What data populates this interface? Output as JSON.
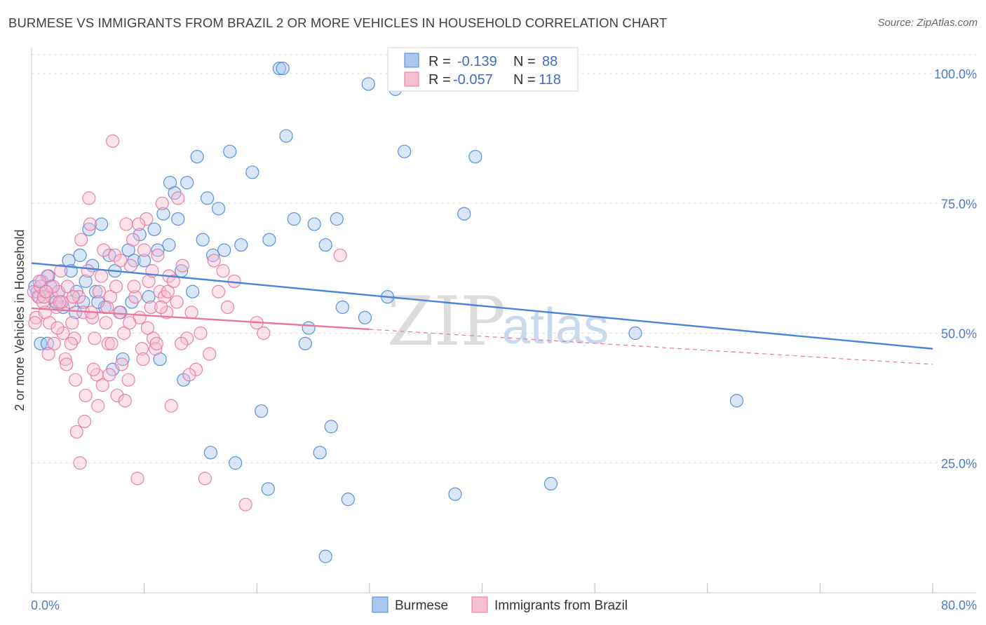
{
  "chart_data": {
    "type": "scatter",
    "title": "BURMESE VS IMMIGRANTS FROM BRAZIL 2 OR MORE VEHICLES IN HOUSEHOLD CORRELATION CHART",
    "source": "Source: ZipAtlas.com",
    "xlabel": "",
    "ylabel": "2 or more Vehicles in Household",
    "xlim": [
      0,
      80
    ],
    "ylim": [
      0,
      105
    ],
    "x_tick_labels": {
      "min": "0.0%",
      "max": "80.0%"
    },
    "y_tick_labels": [
      {
        "value": 100,
        "label": "100.0%"
      },
      {
        "value": 75,
        "label": "75.0%"
      },
      {
        "value": 50,
        "label": "50.0%"
      },
      {
        "value": 25,
        "label": "25.0%"
      }
    ],
    "watermark": {
      "part1": "ZIP",
      "part2": "atlas"
    },
    "stats": {
      "r_label": "R =",
      "n_label": "N =",
      "rows": [
        {
          "series": "Burmese",
          "r": "-0.139",
          "n": "88"
        },
        {
          "series": "Immigrants from Brazil",
          "r": "-0.057",
          "n": "118"
        }
      ]
    },
    "series": [
      {
        "name": "Burmese",
        "color": "#4a86d8",
        "fill": "#a9c7ee",
        "trend": {
          "x0": 0,
          "y0": 63.5,
          "x1": 80,
          "y1": 47.0,
          "dashed_from": null
        },
        "points": [
          [
            0.3,
            59
          ],
          [
            0.5,
            58
          ],
          [
            0.7,
            57
          ],
          [
            0.9,
            60
          ],
          [
            1.2,
            58
          ],
          [
            1.5,
            61
          ],
          [
            1.7,
            59
          ],
          [
            2.1,
            56
          ],
          [
            2.4,
            58
          ],
          [
            2.8,
            55
          ],
          [
            3.3,
            64
          ],
          [
            3.5,
            62
          ],
          [
            4.0,
            58
          ],
          [
            4.3,
            65
          ],
          [
            4.8,
            60
          ],
          [
            5.1,
            70
          ],
          [
            5.4,
            63
          ],
          [
            5.7,
            58
          ],
          [
            6.2,
            71
          ],
          [
            6.5,
            55
          ],
          [
            6.9,
            65
          ],
          [
            7.4,
            62
          ],
          [
            7.9,
            54
          ],
          [
            8.1,
            45
          ],
          [
            8.6,
            66
          ],
          [
            9.1,
            64
          ],
          [
            9.6,
            69
          ],
          [
            10.0,
            64
          ],
          [
            10.4,
            57
          ],
          [
            10.9,
            70
          ],
          [
            11.2,
            66
          ],
          [
            11.7,
            73
          ],
          [
            12.3,
            79
          ],
          [
            12.7,
            77
          ],
          [
            13.3,
            62
          ],
          [
            13.8,
            79
          ],
          [
            14.3,
            58
          ],
          [
            14.7,
            84
          ],
          [
            15.2,
            68
          ],
          [
            15.6,
            76
          ],
          [
            16.1,
            65
          ],
          [
            16.6,
            74
          ],
          [
            17.1,
            66
          ],
          [
            17.6,
            85
          ],
          [
            18.6,
            67
          ],
          [
            19.6,
            81
          ],
          [
            20.4,
            35
          ],
          [
            21.1,
            68
          ],
          [
            22.0,
            101
          ],
          [
            22.3,
            101
          ],
          [
            22.6,
            88
          ],
          [
            23.3,
            72
          ],
          [
            24.3,
            48
          ],
          [
            24.6,
            51
          ],
          [
            25.1,
            71
          ],
          [
            25.6,
            27
          ],
          [
            26.1,
            67
          ],
          [
            26.6,
            32
          ],
          [
            27.1,
            72
          ],
          [
            27.6,
            55
          ],
          [
            28.1,
            18
          ],
          [
            29.6,
            53
          ],
          [
            29.9,
            98
          ],
          [
            31.6,
            57
          ],
          [
            32.3,
            97
          ],
          [
            33.1,
            85
          ],
          [
            37.6,
            19
          ],
          [
            38.4,
            73
          ],
          [
            39.4,
            84
          ],
          [
            46.1,
            21
          ],
          [
            53.6,
            50
          ],
          [
            62.6,
            37
          ],
          [
            0.8,
            48
          ],
          [
            2.2,
            56
          ],
          [
            3.9,
            54
          ],
          [
            5.9,
            56
          ],
          [
            8.9,
            56
          ],
          [
            11.4,
            45
          ],
          [
            12.2,
            67
          ],
          [
            13.5,
            41
          ],
          [
            15.9,
            27
          ],
          [
            18.1,
            25
          ],
          [
            21.0,
            20
          ],
          [
            26.1,
            7
          ],
          [
            13.0,
            72
          ],
          [
            1.4,
            48
          ],
          [
            4.6,
            56
          ],
          [
            7.2,
            43
          ]
        ]
      },
      {
        "name": "Immigrants from Brazil",
        "color": "#e8769d",
        "fill": "#f6bfd2",
        "trend": {
          "x0": 0,
          "y0": 54.8,
          "x1": 80,
          "y1": 44.0,
          "dashed_from": 30
        },
        "points": [
          [
            0.2,
            58
          ],
          [
            0.4,
            53
          ],
          [
            0.6,
            57
          ],
          [
            0.8,
            59
          ],
          [
            1.0,
            56
          ],
          [
            1.2,
            54
          ],
          [
            1.4,
            61
          ],
          [
            1.6,
            52
          ],
          [
            1.8,
            57
          ],
          [
            2.0,
            48
          ],
          [
            2.2,
            55
          ],
          [
            2.4,
            58
          ],
          [
            2.6,
            62
          ],
          [
            2.8,
            50
          ],
          [
            3.0,
            45
          ],
          [
            3.2,
            59
          ],
          [
            3.4,
            56
          ],
          [
            3.6,
            52
          ],
          [
            3.8,
            49
          ],
          [
            4.0,
            31
          ],
          [
            4.2,
            57
          ],
          [
            4.4,
            68
          ],
          [
            4.6,
            54
          ],
          [
            4.8,
            38
          ],
          [
            5.0,
            62
          ],
          [
            5.2,
            71
          ],
          [
            5.4,
            53
          ],
          [
            5.6,
            49
          ],
          [
            5.8,
            42
          ],
          [
            6.0,
            58
          ],
          [
            6.2,
            61
          ],
          [
            6.4,
            66
          ],
          [
            6.6,
            52
          ],
          [
            6.8,
            48
          ],
          [
            7.0,
            57
          ],
          [
            7.2,
            87
          ],
          [
            7.4,
            65
          ],
          [
            7.6,
            38
          ],
          [
            7.8,
            54
          ],
          [
            8.0,
            44
          ],
          [
            8.2,
            50
          ],
          [
            8.4,
            71
          ],
          [
            8.6,
            41
          ],
          [
            8.8,
            63
          ],
          [
            9.0,
            68
          ],
          [
            9.2,
            57
          ],
          [
            9.4,
            22
          ],
          [
            9.6,
            53
          ],
          [
            9.8,
            47
          ],
          [
            10.0,
            66
          ],
          [
            10.2,
            72
          ],
          [
            10.4,
            60
          ],
          [
            10.6,
            55
          ],
          [
            10.8,
            49
          ],
          [
            11.0,
            47
          ],
          [
            11.2,
            65
          ],
          [
            11.4,
            58
          ],
          [
            11.6,
            75
          ],
          [
            11.8,
            57
          ],
          [
            12.0,
            54
          ],
          [
            12.2,
            61
          ],
          [
            12.4,
            36
          ],
          [
            12.6,
            60
          ],
          [
            13.0,
            76
          ],
          [
            13.4,
            63
          ],
          [
            13.8,
            49
          ],
          [
            14.2,
            54
          ],
          [
            14.6,
            43
          ],
          [
            15.0,
            50
          ],
          [
            15.4,
            22
          ],
          [
            15.8,
            46
          ],
          [
            16.2,
            64
          ],
          [
            16.6,
            58
          ],
          [
            17.0,
            62
          ],
          [
            17.4,
            55
          ],
          [
            18.0,
            60
          ],
          [
            19.0,
            17
          ],
          [
            20.0,
            52
          ],
          [
            20.6,
            50
          ],
          [
            27.4,
            65
          ],
          [
            0.3,
            52
          ],
          [
            0.7,
            60
          ],
          [
            1.1,
            57
          ],
          [
            1.5,
            46
          ],
          [
            1.9,
            59
          ],
          [
            2.3,
            51
          ],
          [
            2.7,
            56
          ],
          [
            3.1,
            44
          ],
          [
            3.5,
            48
          ],
          [
            3.9,
            41
          ],
          [
            4.3,
            25
          ],
          [
            4.7,
            33
          ],
          [
            5.1,
            76
          ],
          [
            5.5,
            43
          ],
          [
            5.9,
            36
          ],
          [
            6.3,
            40
          ],
          [
            6.7,
            55
          ],
          [
            7.1,
            48
          ],
          [
            7.5,
            59
          ],
          [
            7.9,
            64
          ],
          [
            8.3,
            37
          ],
          [
            8.7,
            52
          ],
          [
            9.1,
            59
          ],
          [
            9.5,
            71
          ],
          [
            9.9,
            45
          ],
          [
            10.3,
            51
          ],
          [
            10.7,
            62
          ],
          [
            11.1,
            48
          ],
          [
            11.5,
            55
          ],
          [
            12.1,
            58
          ],
          [
            12.9,
            56
          ],
          [
            13.3,
            48
          ],
          [
            14.0,
            42
          ],
          [
            1.3,
            58
          ],
          [
            2.5,
            56
          ],
          [
            3.7,
            57
          ],
          [
            5.3,
            54
          ],
          [
            6.9,
            42
          ]
        ]
      }
    ]
  }
}
